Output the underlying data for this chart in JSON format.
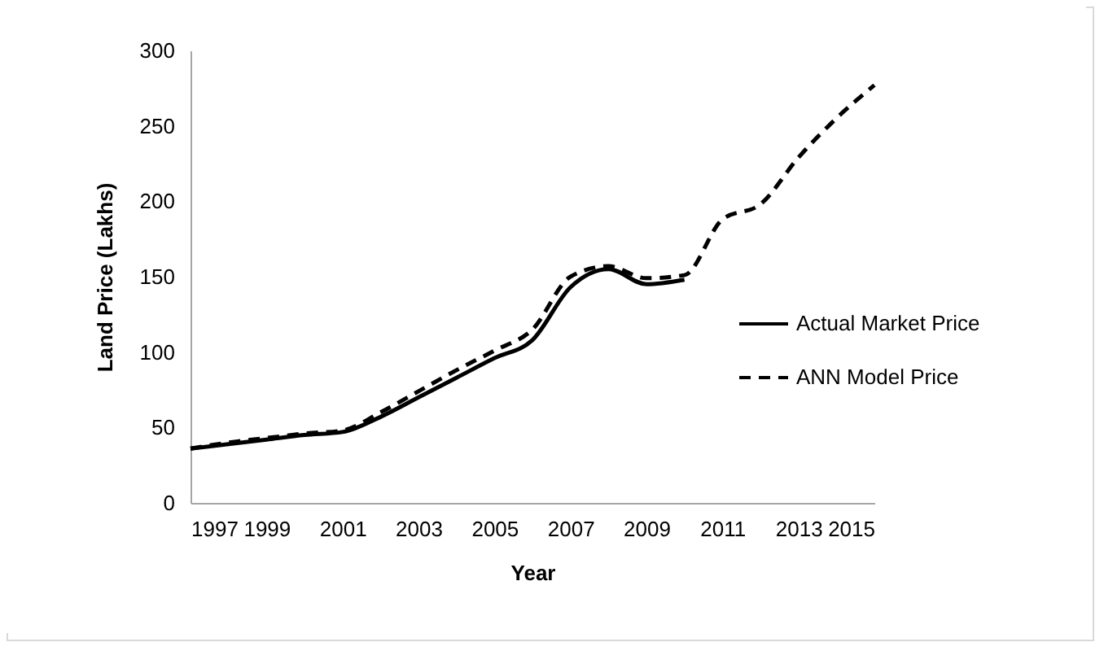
{
  "chart_data": {
    "type": "line",
    "xlabel": "Year",
    "ylabel": "Land Price (Lakhs)",
    "xlim": [
      1997,
      2015
    ],
    "xticks": [
      1997,
      1999,
      2001,
      2003,
      2005,
      2007,
      2009,
      2011,
      2013,
      2015
    ],
    "ylim": [
      0,
      300
    ],
    "yticks": [
      0,
      50,
      100,
      150,
      200,
      250,
      300
    ],
    "grid": false,
    "legend": "right",
    "marker": "none",
    "series": [
      {
        "name": "Actual Market Price",
        "color": "#000000",
        "line_style": "solid",
        "x": [
          1997,
          1998,
          1999,
          2000,
          2001,
          2002,
          2003,
          2004,
          2005,
          2006,
          2007,
          2008,
          2009,
          2010
        ],
        "values": [
          36,
          39,
          42,
          45,
          47,
          57,
          70,
          83,
          96,
          108,
          143,
          155,
          145,
          148
        ]
      },
      {
        "name": "ANN Model Price",
        "color": "#000000",
        "line_style": "dashed",
        "x": [
          1997,
          1998,
          1999,
          2000,
          2001,
          2002,
          2003,
          2004,
          2005,
          2006,
          2007,
          2008,
          2009,
          2010,
          2011,
          2012,
          2013,
          2014,
          2015
        ],
        "values": [
          36,
          40,
          43,
          46,
          48,
          60,
          74,
          88,
          101,
          115,
          150,
          157,
          149,
          151,
          188,
          198,
          229,
          255,
          277
        ]
      }
    ]
  }
}
